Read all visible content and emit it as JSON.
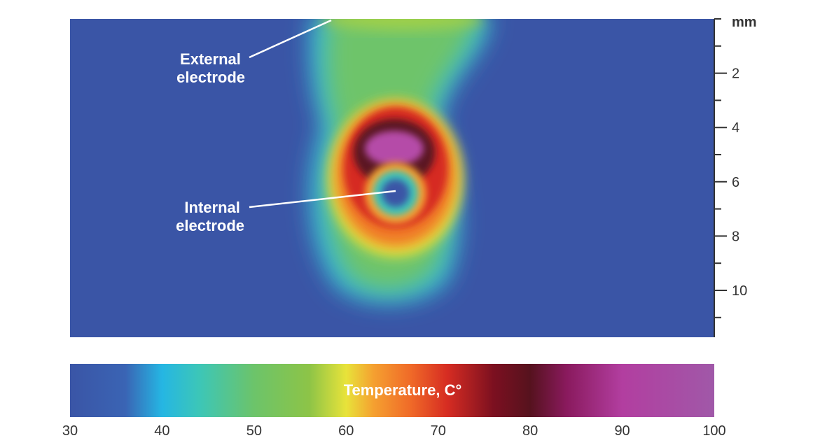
{
  "chart_data": {
    "type": "heatmap",
    "title": "",
    "colorbar": {
      "label": "Temperature, C°",
      "min": 30,
      "max": 100,
      "ticks": [
        "30",
        "40",
        "50",
        "60",
        "70",
        "80",
        "90",
        "100"
      ],
      "stops": [
        {
          "value": 30,
          "color": "#3a55a6"
        },
        {
          "value": 36,
          "color": "#3a64b4"
        },
        {
          "value": 40,
          "color": "#25b6e3"
        },
        {
          "value": 44,
          "color": "#3cc6b8"
        },
        {
          "value": 50,
          "color": "#6cc46a"
        },
        {
          "value": 56,
          "color": "#8dc447"
        },
        {
          "value": 60,
          "color": "#e8e33a"
        },
        {
          "value": 63,
          "color": "#f5a030"
        },
        {
          "value": 67,
          "color": "#f06a28"
        },
        {
          "value": 71,
          "color": "#d62c22"
        },
        {
          "value": 76,
          "color": "#7c1020"
        },
        {
          "value": 80,
          "color": "#56121e"
        },
        {
          "value": 84,
          "color": "#8a1a5e"
        },
        {
          "value": 90,
          "color": "#b23ea0"
        },
        {
          "value": 100,
          "color": "#a058a8"
        }
      ]
    },
    "y_axis": {
      "unit": "mm",
      "range": [
        0,
        11.3
      ],
      "ticks": [
        {
          "value": 0,
          "label": ""
        },
        {
          "value": 1,
          "label": ""
        },
        {
          "value": 2,
          "label": "2"
        },
        {
          "value": 3,
          "label": ""
        },
        {
          "value": 4,
          "label": "4"
        },
        {
          "value": 5,
          "label": ""
        },
        {
          "value": 6,
          "label": "6"
        },
        {
          "value": 7,
          "label": ""
        },
        {
          "value": 8,
          "label": "8"
        },
        {
          "value": 9,
          "label": ""
        },
        {
          "value": 10,
          "label": "10"
        },
        {
          "value": 11,
          "label": ""
        }
      ]
    },
    "x_range_mm": [
      0,
      23.2
    ],
    "background_temperature": 30,
    "annotations": [
      {
        "lines": [
          "External",
          "electrode"
        ],
        "target_mm": [
          9.4,
          0
        ]
      },
      {
        "lines": [
          "Internal",
          "electrode"
        ],
        "target_mm": [
          11.7,
          6.2
        ]
      }
    ]
  }
}
